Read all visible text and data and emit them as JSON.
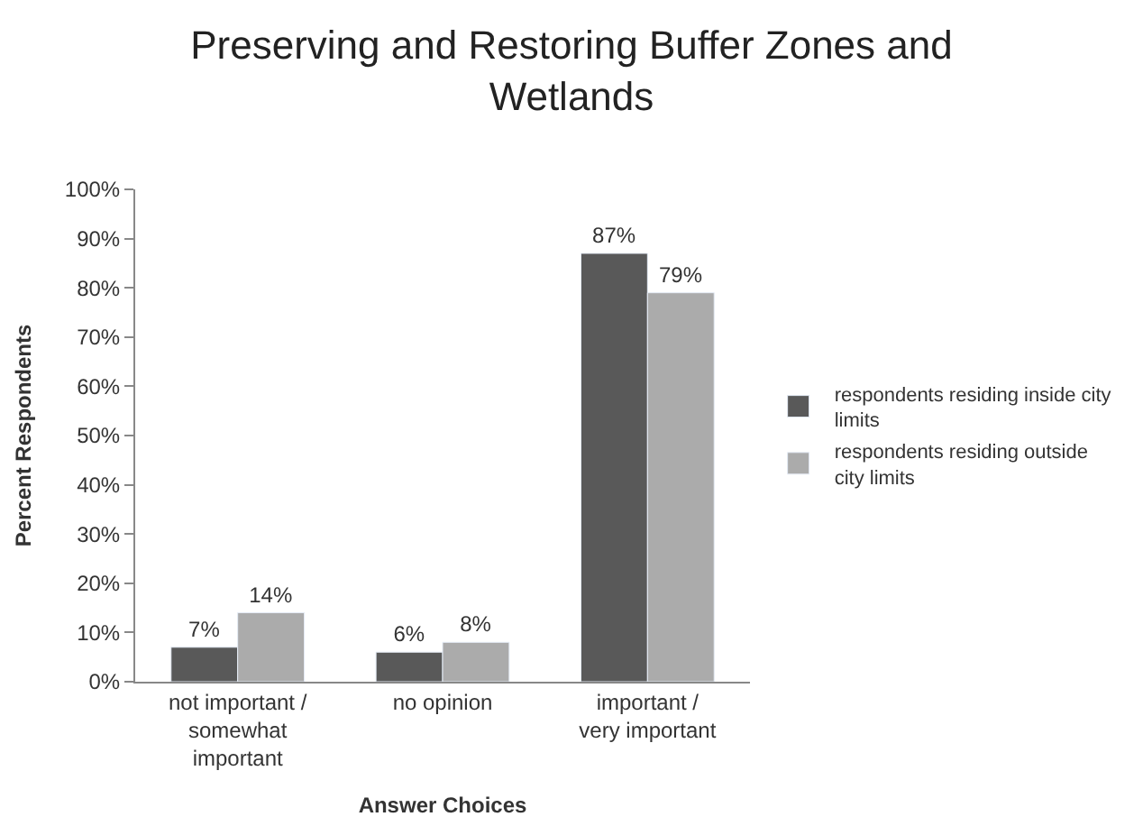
{
  "chart_data": {
    "type": "bar",
    "title": "Preserving and Restoring Buffer Zones and Wetlands",
    "xlabel": "Answer Choices",
    "ylabel": "Percent Respondents",
    "categories": [
      "not important / somewhat important",
      "no opinion",
      "important / very important"
    ],
    "series": [
      {
        "name": "respondents residing inside city limits",
        "color": "#595959",
        "values": [
          7,
          6,
          87
        ],
        "value_labels": [
          "7%",
          "6%",
          "87%"
        ]
      },
      {
        "name": "respondents residing outside city limits",
        "color": "#ababab",
        "values": [
          14,
          8,
          79
        ],
        "value_labels": [
          "14%",
          "8%",
          "79%"
        ]
      }
    ],
    "ylim": [
      0,
      100
    ],
    "yticks": [
      {
        "value": 0,
        "label": "0%"
      },
      {
        "value": 10,
        "label": "10%"
      },
      {
        "value": 20,
        "label": "20%"
      },
      {
        "value": 30,
        "label": "30%"
      },
      {
        "value": 40,
        "label": "40%"
      },
      {
        "value": 50,
        "label": "50%"
      },
      {
        "value": 60,
        "label": "60%"
      },
      {
        "value": 70,
        "label": "70%"
      },
      {
        "value": 80,
        "label": "80%"
      },
      {
        "value": 90,
        "label": "90%"
      },
      {
        "value": 100,
        "label": "100%"
      }
    ],
    "legend": "right"
  }
}
